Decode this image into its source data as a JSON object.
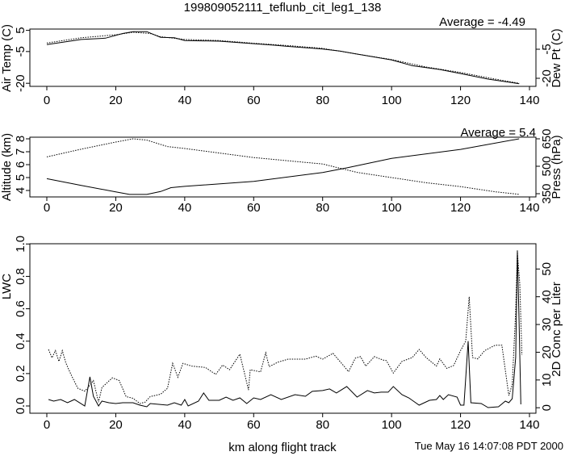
{
  "chart_data": [
    {
      "type": "line",
      "title": "199809052111_teflunb_cit_leg1_138",
      "annotation": "Average = -4.49",
      "xlabel": "",
      "xlim": [
        0,
        140
      ],
      "xticks": [
        "0",
        "20",
        "40",
        "60",
        "80",
        "100",
        "120",
        "140"
      ],
      "ylabel": "Air Temp (C)",
      "yticks": [
        "5",
        "-5",
        "-20"
      ],
      "ylabel_right": "Dew Pt (C)",
      "yticks_right": [
        "-5",
        "-20"
      ],
      "series": [
        {
          "name": "Air Temp (C)",
          "style": "solid",
          "x": [
            0,
            10,
            17,
            22,
            25,
            29,
            33,
            37,
            40,
            50,
            60,
            66,
            70,
            80,
            85,
            90,
            100,
            106,
            114,
            120,
            128,
            137
          ],
          "y": [
            -1.7,
            0.7,
            1.3,
            3.5,
            4.4,
            4.4,
            1.7,
            1.5,
            0.2,
            -0.1,
            -1.3,
            -2,
            -2.6,
            -3.8,
            -4.8,
            -6.2,
            -9,
            -11.7,
            -13.5,
            -15.4,
            -18,
            -20.2
          ]
        },
        {
          "name": "Dew Pt (C)",
          "style": "dotted",
          "x": [
            0,
            10,
            20,
            25,
            30,
            33,
            40,
            50,
            60,
            70,
            80,
            90,
            100,
            110,
            120,
            130,
            137
          ],
          "y": [
            -1,
            1.5,
            2.9,
            4.1,
            3.5,
            2,
            0.7,
            0.2,
            -1.1,
            -2.2,
            -3.5,
            -6.2,
            -8.8,
            -12.3,
            -14.9,
            -18,
            -20
          ]
        }
      ]
    },
    {
      "type": "line",
      "annotation": "Average = 5.4",
      "xlim": [
        0,
        140
      ],
      "xticks": [
        "0",
        "20",
        "40",
        "60",
        "80",
        "100",
        "120",
        "140"
      ],
      "ylabel": "Altitude (km)",
      "yticks": [
        "4",
        "5",
        "6",
        "7",
        "8"
      ],
      "ylabel_right": "Press (hPa)",
      "yticks_right": [
        "350",
        "500",
        "650"
      ],
      "series": [
        {
          "name": "Altitude (km)",
          "style": "dotted",
          "x": [
            0,
            10,
            20,
            25,
            29,
            35,
            40,
            50,
            60,
            70,
            80,
            90,
            100,
            110,
            120,
            130,
            137
          ],
          "y": [
            6.6,
            7.2,
            7.75,
            8.0,
            7.9,
            7.4,
            7.25,
            6.9,
            6.55,
            6.3,
            6.05,
            5.4,
            5.0,
            4.6,
            4.3,
            3.9,
            3.7
          ]
        },
        {
          "name": "Press (hPa)",
          "style": "solid",
          "x": [
            0,
            10,
            20,
            24,
            29,
            33,
            36,
            40,
            60,
            80,
            87,
            100,
            120,
            137
          ],
          "y": [
            432,
            395,
            360,
            346,
            346,
            362,
            383,
            390,
            417,
            466,
            491,
            543,
            592,
            650
          ]
        }
      ]
    },
    {
      "type": "line",
      "xlabel": "km along flight track",
      "xlim": [
        0,
        140
      ],
      "xticks": [
        "0",
        "20",
        "40",
        "60",
        "80",
        "100",
        "120",
        "140"
      ],
      "ylabel": "LWC",
      "yticks": [
        "0.0",
        "0.2",
        "0.4",
        "0.6",
        "0.8",
        "1.0"
      ],
      "ylabel_right": "2D Conc per Liter",
      "yticks_right": [
        "0",
        "10",
        "20",
        "30",
        "40",
        "50"
      ],
      "series": [
        {
          "name": "LWC",
          "style": "solid",
          "x": [
            0.5,
            2,
            4,
            6,
            8,
            11,
            12.5,
            13.5,
            15,
            16,
            18,
            20,
            22,
            25,
            27,
            29,
            30,
            35,
            37,
            39,
            40,
            41,
            44,
            45.5,
            47,
            50,
            52,
            54,
            56,
            58,
            60,
            62,
            65,
            68,
            72,
            75,
            77,
            80,
            82,
            84,
            87,
            90,
            93,
            95,
            97,
            99,
            100.5,
            103,
            105,
            108,
            111,
            113,
            114,
            115,
            116.5,
            119,
            120,
            121,
            122.2,
            123,
            126,
            128,
            131,
            133,
            134,
            135,
            136,
            136.5,
            137,
            137.5
          ],
          "y": [
            0.04,
            0.03,
            0.04,
            0.02,
            0.04,
            0,
            0.18,
            0.06,
            0,
            0.03,
            0.02,
            0.015,
            0.02,
            0.02,
            0.005,
            -0.005,
            0.015,
            0.005,
            0.02,
            0.005,
            0.04,
            0,
            0.03,
            0.08,
            0.035,
            0.035,
            0.055,
            0.035,
            0.05,
            0.015,
            0.05,
            0.04,
            0.07,
            0.04,
            0.07,
            0.06,
            0.09,
            0.095,
            0.105,
            0.08,
            0.12,
            0.055,
            0.095,
            0.08,
            0.085,
            0.085,
            0.12,
            0.07,
            0.05,
            0.005,
            0.035,
            0.04,
            0.065,
            0.04,
            0.07,
            0.055,
            0.005,
            0.005,
            0.4,
            0.02,
            0.015,
            -0.01,
            -0.005,
            0.03,
            0.02,
            0.045,
            0.3,
            0.96,
            0.5,
            0.01
          ]
        },
        {
          "name": "2D Conc per Liter",
          "style": "dotted",
          "x": [
            0.5,
            1.5,
            2.5,
            3.5,
            4.5,
            5.5,
            7,
            9,
            11,
            12,
            13.5,
            15,
            16,
            19,
            21,
            23,
            25,
            27,
            28.5,
            30,
            33,
            35,
            36.5,
            38,
            39.5,
            42,
            46,
            49,
            51,
            53,
            56,
            58.5,
            59,
            62,
            63.5,
            64.5,
            67,
            70,
            75,
            78,
            80,
            83,
            86,
            87.5,
            89.5,
            91,
            92.5,
            95,
            97.5,
            98.5,
            100.5,
            103,
            106,
            108,
            110,
            113,
            114,
            116,
            118,
            120,
            121.5,
            122.5,
            123.5,
            125,
            127,
            130,
            132,
            134,
            135,
            136,
            136.5,
            137.2,
            137.8
          ],
          "y": [
            21,
            18,
            20.6,
            16.7,
            20.6,
            16.2,
            12,
            7,
            6,
            7.3,
            9.8,
            2,
            7.3,
            10.8,
            9.8,
            4,
            3.4,
            1.5,
            2,
            4,
            4.9,
            7,
            16,
            11,
            16,
            15,
            14.5,
            12,
            15.4,
            13.7,
            19.3,
            6.4,
            13.7,
            12.9,
            19.8,
            14.8,
            16.4,
            17.5,
            17.5,
            18.6,
            17.5,
            19.6,
            15.3,
            13,
            17.9,
            18.4,
            15,
            18.4,
            17.2,
            17,
            12.5,
            16.7,
            18.1,
            21,
            18.1,
            15,
            17.6,
            14.2,
            15.2,
            20.6,
            24,
            40,
            18.1,
            17.6,
            20.6,
            22.5,
            22.5,
            4.4,
            8.3,
            35,
            56,
            44.6,
            19
          ]
        }
      ]
    }
  ],
  "footer": {
    "timestamp": "Tue May 16 14:07:08 PDT 2000"
  }
}
